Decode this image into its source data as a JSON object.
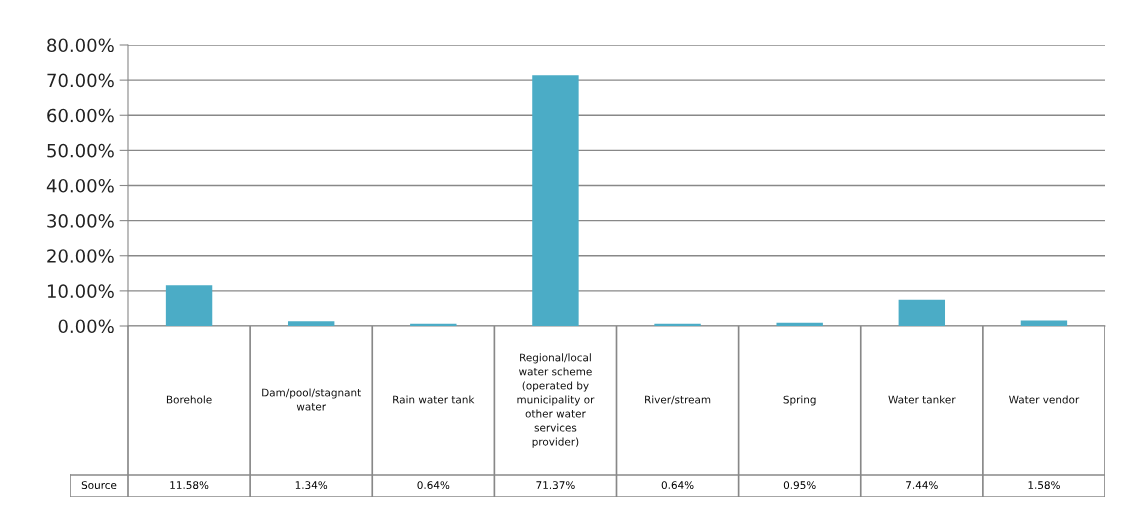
{
  "chart_data": {
    "type": "bar",
    "categories": [
      "Borehole",
      "Dam/pool/stagnant water",
      "Rain water tank",
      "Regional/local water scheme (operated by municipality or other water services provider)",
      "River/stream",
      "Spring",
      "Water tanker",
      "Water vendor"
    ],
    "series": [
      {
        "name": "Source",
        "color": "#4bacc6",
        "values": [
          11.58,
          1.34,
          0.64,
          71.37,
          0.64,
          0.95,
          7.44,
          1.58
        ],
        "value_labels": [
          "11.58%",
          "1.34%",
          "0.64%",
          "71.37%",
          "0.64%",
          "0.95%",
          "7.44%",
          "1.58%"
        ]
      }
    ],
    "ylim": [
      0,
      80
    ],
    "yticks": [
      {
        "value": 0,
        "label": "0.00%"
      },
      {
        "value": 10,
        "label": "10.00%"
      },
      {
        "value": 20,
        "label": "20.00%"
      },
      {
        "value": 30,
        "label": "30.00%"
      },
      {
        "value": 40,
        "label": "40.00%"
      },
      {
        "value": 50,
        "label": "50.00%"
      },
      {
        "value": 60,
        "label": "60.00%"
      },
      {
        "value": 70,
        "label": "70.00%"
      },
      {
        "value": 80,
        "label": "80.00%"
      }
    ],
    "grid": "y",
    "legend": false
  }
}
